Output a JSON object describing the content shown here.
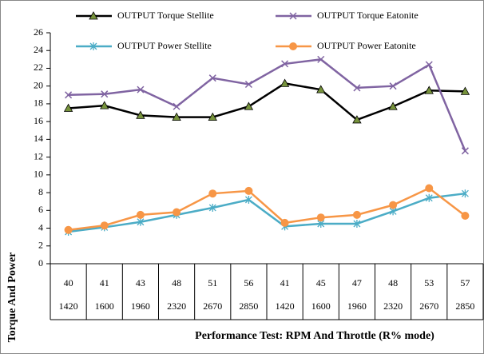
{
  "chart_data": {
    "type": "line",
    "categories": [
      "40",
      "41",
      "43",
      "48",
      "51",
      "56",
      "41",
      "45",
      "47",
      "48",
      "53",
      "57"
    ],
    "categories_rpm": [
      "1420",
      "1600",
      "1960",
      "2320",
      "2670",
      "2850",
      "1420",
      "1600",
      "1960",
      "2320",
      "2670",
      "2850"
    ],
    "x_label": "Performance Test: RPM And Throttle (R% mode)",
    "y_label": "Torque And Power",
    "ylim": [
      0,
      26
    ],
    "yticks": [
      0,
      2,
      4,
      6,
      8,
      10,
      12,
      14,
      16,
      18,
      20,
      22,
      24,
      26
    ],
    "series": [
      {
        "name": "OUTPUT Torque Stellite",
        "color": "#000000",
        "marker": "triangle",
        "marker_color": "#77933c",
        "values": [
          17.5,
          17.8,
          16.7,
          16.5,
          16.5,
          17.7,
          20.3,
          19.6,
          16.2,
          17.7,
          19.5,
          19.4
        ]
      },
      {
        "name": "OUTPUT Torque Eatonite",
        "color": "#8064a2",
        "marker": "x",
        "marker_color": "#8064a2",
        "values": [
          19.0,
          19.1,
          19.6,
          17.7,
          20.9,
          20.2,
          22.5,
          23.0,
          19.8,
          20.0,
          22.4,
          12.7
        ]
      },
      {
        "name": "OUTPUT Power Stellite",
        "color": "#4bacc6",
        "marker": "star",
        "marker_color": "#4bacc6",
        "values": [
          3.6,
          4.1,
          4.7,
          5.5,
          6.3,
          7.2,
          4.2,
          4.5,
          4.5,
          5.9,
          7.4,
          7.9
        ]
      },
      {
        "name": "OUTPUT Power Eatonite",
        "color": "#f79646",
        "marker": "circle",
        "marker_color": "#f79646",
        "values": [
          3.8,
          4.3,
          5.5,
          5.8,
          7.9,
          8.2,
          4.6,
          5.2,
          5.5,
          6.6,
          8.5,
          5.4
        ]
      }
    ]
  }
}
